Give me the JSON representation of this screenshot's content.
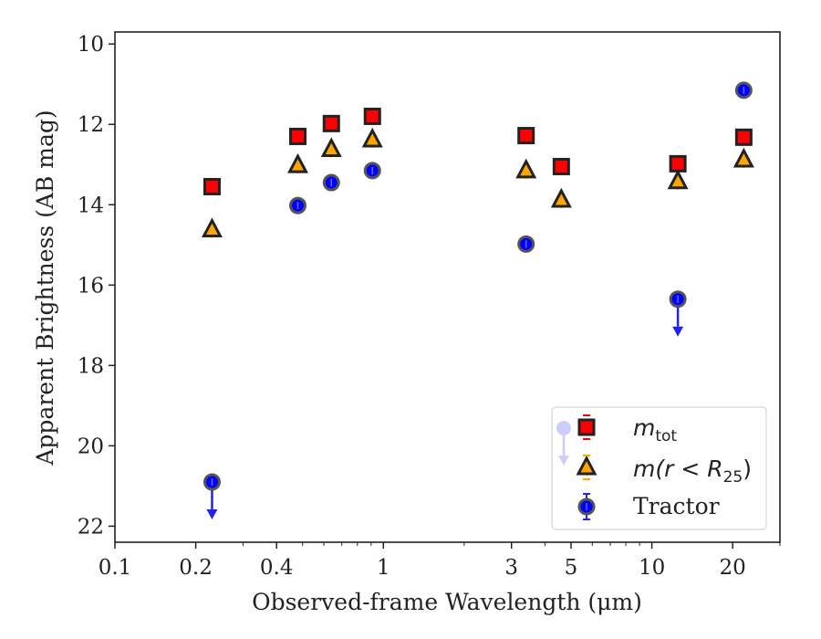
{
  "chart_data": {
    "type": "scatter",
    "title": "",
    "xlabel": "Observed-frame Wavelength (μm)",
    "ylabel": "Apparent Brightness (AB mag)",
    "xscale": "log",
    "xlim": [
      0.1,
      30
    ],
    "ylim": [
      22.4,
      9.7
    ],
    "y_inverted": true,
    "x_ticks": [
      0.1,
      0.2,
      0.4,
      1,
      3,
      5,
      10,
      20
    ],
    "x_tick_labels": [
      "0.1",
      "0.2",
      "0.4",
      "1",
      "3",
      "5",
      "10",
      "20"
    ],
    "y_ticks": [
      10,
      12,
      14,
      16,
      18,
      20,
      22
    ],
    "y_tick_labels": [
      "10",
      "12",
      "14",
      "16",
      "18",
      "20",
      "22"
    ],
    "grid": false,
    "legend_position": "lower-right",
    "series": [
      {
        "key": "mtot",
        "legend_base": "m",
        "legend_sub": "tot",
        "marker": "square",
        "color": "#ff0000",
        "edge_color": "#222222",
        "points": [
          {
            "x": 0.23,
            "y": 13.55
          },
          {
            "x": 0.48,
            "y": 12.3
          },
          {
            "x": 0.64,
            "y": 11.98
          },
          {
            "x": 0.91,
            "y": 11.8
          },
          {
            "x": 3.4,
            "y": 12.28
          },
          {
            "x": 4.6,
            "y": 13.05
          },
          {
            "x": 12.5,
            "y": 12.98
          },
          {
            "x": 22.0,
            "y": 12.32
          }
        ]
      },
      {
        "key": "mr25",
        "legend_base": "m(r < R",
        "legend_sub": "25",
        "legend_close": ")",
        "marker": "triangle",
        "color": "#ffa500",
        "edge_color": "#222222",
        "points": [
          {
            "x": 0.23,
            "y": 14.62
          },
          {
            "x": 0.48,
            "y": 13.02
          },
          {
            "x": 0.64,
            "y": 12.62
          },
          {
            "x": 0.91,
            "y": 12.38
          },
          {
            "x": 3.4,
            "y": 13.15
          },
          {
            "x": 4.6,
            "y": 13.88
          },
          {
            "x": 12.5,
            "y": 13.42
          },
          {
            "x": 22.0,
            "y": 12.88
          }
        ]
      },
      {
        "key": "tractor",
        "legend_label": "Tractor",
        "marker": "circle",
        "color": "#0000ff",
        "edge_color": "#222222",
        "points": [
          {
            "x": 0.23,
            "y": 20.9,
            "upper_limit": true
          },
          {
            "x": 0.48,
            "y": 14.02
          },
          {
            "x": 0.64,
            "y": 13.45
          },
          {
            "x": 0.91,
            "y": 13.15
          },
          {
            "x": 3.4,
            "y": 14.98
          },
          {
            "x": 12.5,
            "y": 16.35,
            "upper_limit": true
          },
          {
            "x": 22.0,
            "y": 11.15
          }
        ]
      }
    ]
  }
}
